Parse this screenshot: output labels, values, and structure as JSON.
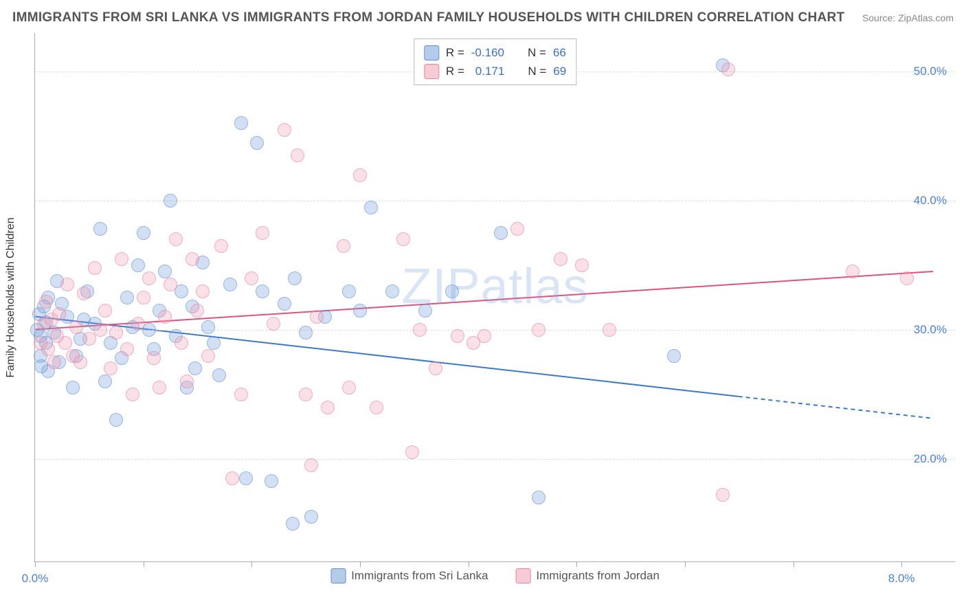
{
  "title": "IMMIGRANTS FROM SRI LANKA VS IMMIGRANTS FROM JORDAN FAMILY HOUSEHOLDS WITH CHILDREN CORRELATION CHART",
  "source_label": "Source: ZipAtlas.com",
  "watermark_text": "ZIPatlas",
  "y_axis_label": "Family Households with Children",
  "chart": {
    "type": "scatter",
    "xlim": [
      0,
      8.5
    ],
    "ylim": [
      12,
      53
    ],
    "y_ticks": [
      20,
      30,
      40,
      50
    ],
    "y_tick_labels": [
      "20.0%",
      "30.0%",
      "40.0%",
      "50.0%"
    ],
    "x_ticks": [
      0,
      1,
      2,
      3,
      4,
      5,
      6,
      7,
      8
    ],
    "x_labels": [
      {
        "x": 0.0,
        "text": "0.0%"
      },
      {
        "x": 8.0,
        "text": "8.0%"
      }
    ],
    "background_color": "#ffffff",
    "grid_color": "#dddddd",
    "point_radius": 10,
    "y_tick_color": "#4a80d6",
    "x_tick_color": "#4a80d6",
    "border_color": "#aaaaaa",
    "series": [
      {
        "name": "Immigrants from Sri Lanka",
        "color_fill": "rgba(120,160,220,0.5)",
        "color_stroke": "#5a8fd4",
        "r_value": "-0.160",
        "n_value": "66",
        "trend": {
          "x1": 0.0,
          "y1": 31.0,
          "x2": 6.5,
          "y2": 24.8,
          "extrap_x2": 8.3,
          "extrap_y2": 23.1,
          "stroke": "#3a78d0",
          "width": 2
        },
        "points": [
          [
            0.02,
            30.0
          ],
          [
            0.04,
            31.2
          ],
          [
            0.05,
            29.5
          ],
          [
            0.05,
            28.0
          ],
          [
            0.06,
            27.2
          ],
          [
            0.08,
            31.8
          ],
          [
            0.1,
            30.6
          ],
          [
            0.1,
            29.0
          ],
          [
            0.12,
            26.8
          ],
          [
            0.12,
            32.5
          ],
          [
            0.18,
            29.8
          ],
          [
            0.2,
            33.8
          ],
          [
            0.22,
            27.5
          ],
          [
            0.25,
            32.0
          ],
          [
            0.3,
            31.0
          ],
          [
            0.35,
            25.5
          ],
          [
            0.38,
            28.0
          ],
          [
            0.42,
            29.3
          ],
          [
            0.45,
            30.8
          ],
          [
            0.48,
            33.0
          ],
          [
            0.55,
            30.5
          ],
          [
            0.6,
            37.8
          ],
          [
            0.65,
            26.0
          ],
          [
            0.7,
            29.0
          ],
          [
            0.75,
            23.0
          ],
          [
            0.8,
            27.8
          ],
          [
            0.85,
            32.5
          ],
          [
            0.9,
            30.2
          ],
          [
            0.95,
            35.0
          ],
          [
            1.0,
            37.5
          ],
          [
            1.05,
            30.0
          ],
          [
            1.1,
            28.5
          ],
          [
            1.15,
            31.5
          ],
          [
            1.2,
            34.5
          ],
          [
            1.25,
            40.0
          ],
          [
            1.3,
            29.5
          ],
          [
            1.35,
            33.0
          ],
          [
            1.4,
            25.5
          ],
          [
            1.45,
            31.8
          ],
          [
            1.48,
            27.0
          ],
          [
            1.55,
            35.2
          ],
          [
            1.6,
            30.2
          ],
          [
            1.65,
            29.0
          ],
          [
            1.7,
            26.5
          ],
          [
            1.8,
            33.5
          ],
          [
            1.9,
            46.0
          ],
          [
            1.95,
            18.5
          ],
          [
            2.05,
            44.5
          ],
          [
            2.1,
            33.0
          ],
          [
            2.18,
            18.3
          ],
          [
            2.3,
            32.0
          ],
          [
            2.38,
            15.0
          ],
          [
            2.4,
            34.0
          ],
          [
            2.5,
            29.8
          ],
          [
            2.55,
            15.5
          ],
          [
            2.68,
            31.0
          ],
          [
            2.9,
            33.0
          ],
          [
            3.0,
            31.5
          ],
          [
            3.1,
            39.5
          ],
          [
            3.3,
            33.0
          ],
          [
            3.6,
            31.5
          ],
          [
            3.85,
            33.0
          ],
          [
            4.3,
            37.5
          ],
          [
            4.65,
            17.0
          ],
          [
            5.9,
            28.0
          ],
          [
            6.35,
            50.5
          ]
        ]
      },
      {
        "name": "Immigrants from Jordan",
        "color_fill": "rgba(240,160,180,0.5)",
        "color_stroke": "#e882a0",
        "r_value": "0.171",
        "n_value": "69",
        "trend": {
          "x1": 0.0,
          "y1": 30.0,
          "x2": 8.3,
          "y2": 34.5,
          "stroke": "#e0527c",
          "width": 2
        },
        "points": [
          [
            0.05,
            29.0
          ],
          [
            0.08,
            30.5
          ],
          [
            0.1,
            32.2
          ],
          [
            0.12,
            28.5
          ],
          [
            0.15,
            30.8
          ],
          [
            0.18,
            27.5
          ],
          [
            0.2,
            29.5
          ],
          [
            0.22,
            31.2
          ],
          [
            0.28,
            29.0
          ],
          [
            0.3,
            33.5
          ],
          [
            0.35,
            28.0
          ],
          [
            0.38,
            30.2
          ],
          [
            0.42,
            27.5
          ],
          [
            0.45,
            32.8
          ],
          [
            0.5,
            29.3
          ],
          [
            0.55,
            34.8
          ],
          [
            0.6,
            30.0
          ],
          [
            0.65,
            31.5
          ],
          [
            0.7,
            27.0
          ],
          [
            0.75,
            29.8
          ],
          [
            0.8,
            35.5
          ],
          [
            0.85,
            28.5
          ],
          [
            0.9,
            25.0
          ],
          [
            0.95,
            30.5
          ],
          [
            1.0,
            32.5
          ],
          [
            1.05,
            34.0
          ],
          [
            1.1,
            27.8
          ],
          [
            1.15,
            25.5
          ],
          [
            1.2,
            31.0
          ],
          [
            1.25,
            33.5
          ],
          [
            1.3,
            37.0
          ],
          [
            1.35,
            29.0
          ],
          [
            1.4,
            26.0
          ],
          [
            1.45,
            35.5
          ],
          [
            1.5,
            31.5
          ],
          [
            1.55,
            33.0
          ],
          [
            1.6,
            28.0
          ],
          [
            1.72,
            36.5
          ],
          [
            1.82,
            18.5
          ],
          [
            1.9,
            25.0
          ],
          [
            2.0,
            34.0
          ],
          [
            2.1,
            37.5
          ],
          [
            2.2,
            30.5
          ],
          [
            2.3,
            45.5
          ],
          [
            2.42,
            43.5
          ],
          [
            2.5,
            25.0
          ],
          [
            2.55,
            19.5
          ],
          [
            2.6,
            31.0
          ],
          [
            2.7,
            24.0
          ],
          [
            2.85,
            36.5
          ],
          [
            2.9,
            25.5
          ],
          [
            3.0,
            42.0
          ],
          [
            3.15,
            24.0
          ],
          [
            3.4,
            37.0
          ],
          [
            3.48,
            20.5
          ],
          [
            3.55,
            30.0
          ],
          [
            3.7,
            27.0
          ],
          [
            3.9,
            29.5
          ],
          [
            4.05,
            29.0
          ],
          [
            4.15,
            29.5
          ],
          [
            4.45,
            37.8
          ],
          [
            4.65,
            30.0
          ],
          [
            4.85,
            35.5
          ],
          [
            5.05,
            35.0
          ],
          [
            5.3,
            30.0
          ],
          [
            6.35,
            17.2
          ],
          [
            7.55,
            34.5
          ],
          [
            8.05,
            34.0
          ],
          [
            6.4,
            50.2
          ]
        ]
      }
    ],
    "legend_top": {
      "r_label": "R =",
      "n_label": "N ="
    }
  }
}
